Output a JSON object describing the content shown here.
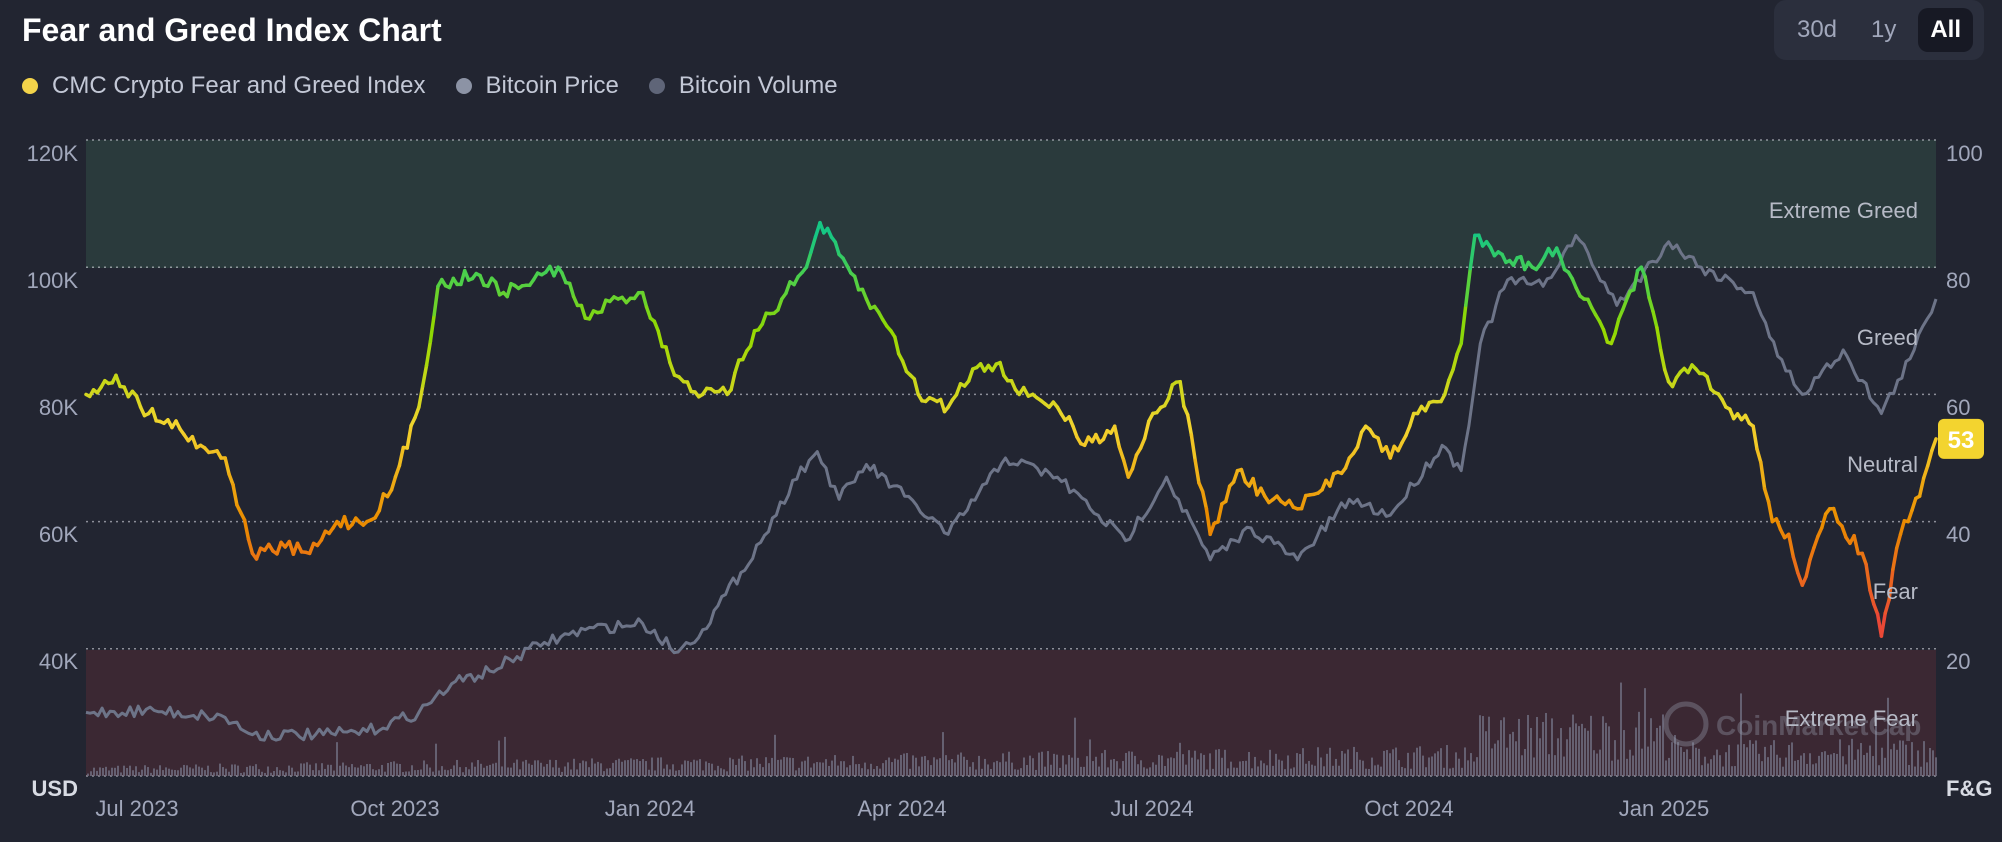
{
  "header": {
    "title": "Fear and Greed Index Chart",
    "ranges": [
      {
        "label": "30d",
        "active": false
      },
      {
        "label": "1y",
        "active": false
      },
      {
        "label": "All",
        "active": true
      }
    ]
  },
  "legend": [
    {
      "label": "CMC Crypto Fear and Greed Index",
      "color": "#f3d34a"
    },
    {
      "label": "Bitcoin Price",
      "color": "#8c93a5"
    },
    {
      "label": "Bitcoin Volume",
      "color": "#5f6578"
    }
  ],
  "watermark": "CoinMarketCap",
  "colors": {
    "extreme_fear": "#ea3943",
    "fear": "#ea8c00",
    "neutral": "#f3d42f",
    "greed": "#93d900",
    "extreme_greed": "#16c784",
    "price": "#6d7488",
    "volume": "#6d6a7c",
    "greed_band": "#2a3a3c",
    "fear_band": "#3b2833"
  },
  "chart_data": {
    "type": "line",
    "x_ticks": [
      "Jul 2023",
      "Oct 2023",
      "Jan 2024",
      "Apr 2024",
      "Jul 2024",
      "Oct 2024",
      "Jan 2025"
    ],
    "left_axis": {
      "unit": "USD",
      "ticks": [
        "120K",
        "100K",
        "80K",
        "60K",
        "40K"
      ],
      "range": [
        20000,
        120000
      ]
    },
    "right_axis": {
      "unit": "F&G",
      "ticks": [
        "100",
        "80",
        "60",
        "40",
        "20"
      ],
      "range": [
        0,
        100
      ]
    },
    "zones": [
      "Extreme Greed",
      "Greed",
      "Neutral",
      "Fear",
      "Extreme Fear"
    ],
    "current_value": "53",
    "series": [
      {
        "name": "CMC Crypto Fear and Greed Index",
        "x": [
          "2023-06-20",
          "2023-07-01",
          "2023-07-10",
          "2023-07-20",
          "2023-08-01",
          "2023-08-10",
          "2023-08-20",
          "2023-09-01",
          "2023-09-10",
          "2023-09-20",
          "2023-10-01",
          "2023-10-10",
          "2023-10-20",
          "2023-10-27",
          "2023-11-10",
          "2023-11-20",
          "2023-12-01",
          "2023-12-10",
          "2023-12-20",
          "2024-01-01",
          "2024-01-10",
          "2024-01-20",
          "2024-01-25",
          "2024-02-01",
          "2024-02-10",
          "2024-02-20",
          "2024-03-01",
          "2024-03-10",
          "2024-03-15",
          "2024-03-22",
          "2024-04-01",
          "2024-04-10",
          "2024-04-20",
          "2024-05-01",
          "2024-05-10",
          "2024-05-20",
          "2024-05-27",
          "2024-06-01",
          "2024-06-10",
          "2024-06-20",
          "2024-07-01",
          "2024-07-06",
          "2024-07-15",
          "2024-07-25",
          "2024-08-05",
          "2024-08-15",
          "2024-08-25",
          "2024-09-06",
          "2024-09-15",
          "2024-09-25",
          "2024-10-01",
          "2024-10-10",
          "2024-10-20",
          "2024-10-30",
          "2024-11-05",
          "2024-11-10",
          "2024-11-20",
          "2024-12-01",
          "2024-12-10",
          "2024-12-20",
          "2024-12-30",
          "2025-01-10",
          "2025-01-20",
          "2025-01-30",
          "2025-02-10",
          "2025-02-20",
          "2025-02-27",
          "2025-03-05",
          "2025-03-10",
          "2025-03-20",
          "2025-04-01",
          "2025-04-08",
          "2025-04-15",
          "2025-04-22",
          "2025-04-28"
        ],
        "values": [
          60,
          63,
          58,
          56,
          52,
          50,
          35,
          36,
          35,
          40,
          40,
          45,
          58,
          77,
          79,
          76,
          78,
          80,
          72,
          75,
          76,
          65,
          62,
          60,
          60,
          70,
          75,
          80,
          87,
          82,
          75,
          70,
          60,
          58,
          64,
          65,
          60,
          60,
          58,
          52,
          55,
          47,
          57,
          62,
          38,
          48,
          44,
          42,
          45,
          50,
          55,
          50,
          57,
          60,
          68,
          85,
          82,
          80,
          83,
          75,
          68,
          80,
          62,
          64,
          58,
          55,
          40,
          38,
          30,
          42,
          35,
          22,
          38,
          44,
          53
        ],
        "unit": "F&G"
      },
      {
        "name": "Bitcoin Price",
        "x": [
          "2023-06-20",
          "2023-07-15",
          "2023-08-10",
          "2023-08-20",
          "2023-09-15",
          "2023-10-01",
          "2023-10-20",
          "2023-11-01",
          "2023-11-15",
          "2023-12-05",
          "2023-12-20",
          "2024-01-10",
          "2024-01-23",
          "2024-02-01",
          "2024-02-15",
          "2024-02-28",
          "2024-03-05",
          "2024-03-14",
          "2024-03-22",
          "2024-04-01",
          "2024-04-15",
          "2024-05-01",
          "2024-05-15",
          "2024-05-22",
          "2024-06-10",
          "2024-06-25",
          "2024-07-05",
          "2024-07-20",
          "2024-08-05",
          "2024-08-20",
          "2024-09-06",
          "2024-09-25",
          "2024-10-10",
          "2024-10-29",
          "2024-11-05",
          "2024-11-12",
          "2024-11-22",
          "2024-12-05",
          "2024-12-17",
          "2025-01-01",
          "2025-01-20",
          "2025-02-01",
          "2025-02-20",
          "2025-03-01",
          "2025-03-10",
          "2025-03-25",
          "2025-04-08",
          "2025-04-20",
          "2025-04-28"
        ],
        "values": [
          30000,
          30300,
          29200,
          26500,
          26500,
          27000,
          30000,
          34500,
          36500,
          41000,
          43000,
          44000,
          39500,
          43000,
          52000,
          61000,
          66500,
          71000,
          63500,
          69000,
          64000,
          58000,
          66000,
          70000,
          67000,
          61000,
          57000,
          67000,
          54000,
          59000,
          54000,
          63500,
          61000,
          72000,
          68000,
          88000,
          98000,
          97000,
          105000,
          94000,
          104000,
          100000,
          96000,
          86000,
          80000,
          87000,
          77000,
          87000,
          95000
        ],
        "unit": "USD"
      }
    ]
  }
}
